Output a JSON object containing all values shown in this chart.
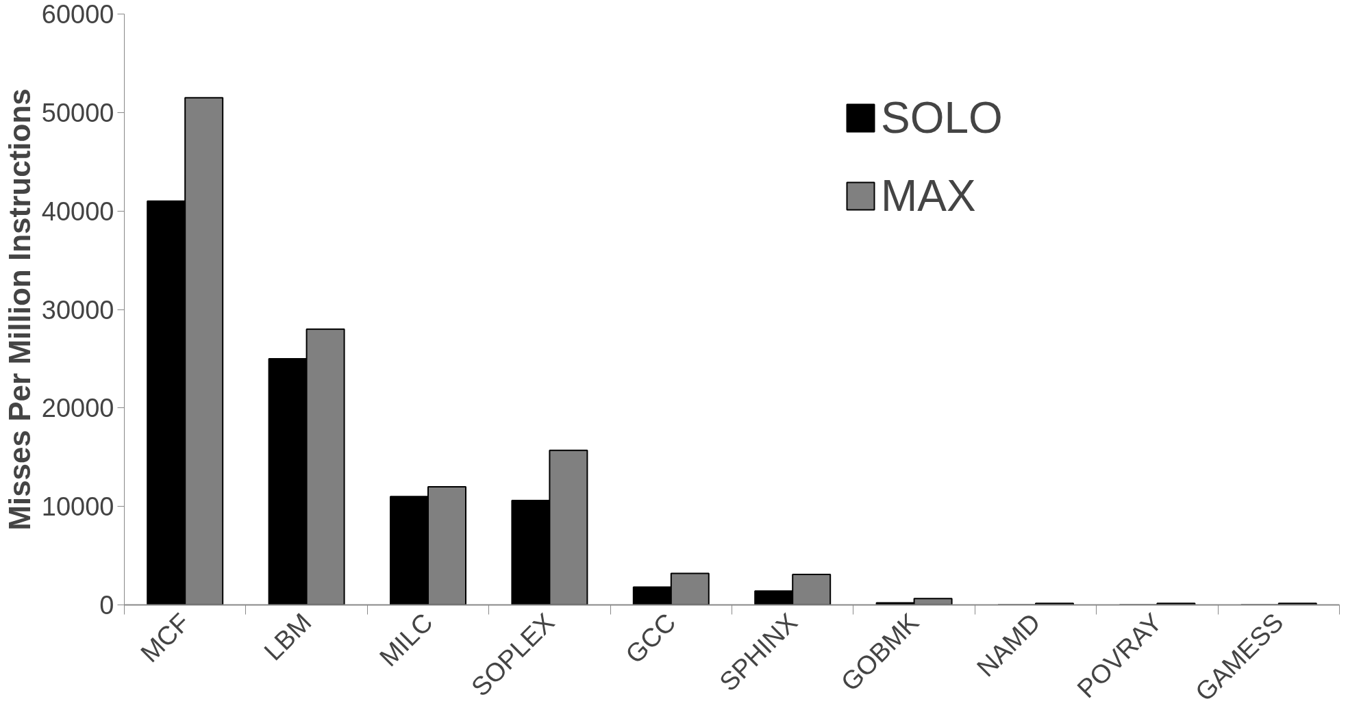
{
  "chart_data": {
    "type": "bar",
    "ylabel": "Misses Per Million Instructions",
    "categories": [
      "MCF",
      "LBM",
      "MILC",
      "SOPLEX",
      "GCC",
      "SPHINX",
      "GOBMK",
      "NAMD",
      "POVRAY",
      "GAMESS"
    ],
    "series": [
      {
        "name": "SOLO",
        "color": "#000000",
        "values": [
          41000,
          25000,
          11000,
          10600,
          1800,
          1400,
          200,
          0,
          0,
          0
        ]
      },
      {
        "name": "MAX",
        "color": "#808080",
        "values": [
          51500,
          28000,
          12000,
          15700,
          3200,
          3100,
          650,
          150,
          150,
          150
        ]
      }
    ],
    "ylim": [
      0,
      60000
    ],
    "yticks": [
      0,
      10000,
      20000,
      30000,
      40000,
      50000,
      60000
    ],
    "grid": false,
    "legend": "top right"
  }
}
